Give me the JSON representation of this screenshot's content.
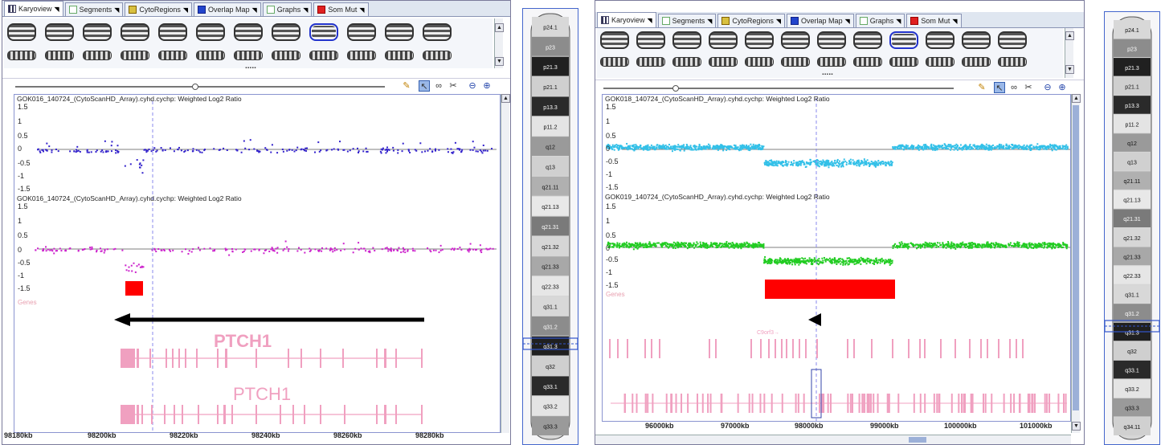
{
  "colors": {
    "probes_016": "#3322cc",
    "probes_017": "#cc22cc",
    "probes_018": "#33c0e8",
    "probes_019": "#22cc22",
    "cnv": "#ff0000",
    "gene": "#f0a0c0",
    "arrow": "#000000"
  },
  "left": {
    "tabs": [
      {
        "label": "Karyoview",
        "icon": "karyoview-icon"
      },
      {
        "label": "Segments",
        "icon": "segments-icon"
      },
      {
        "label": "CytoRegions",
        "icon": "cytoregions-icon"
      },
      {
        "label": "Overlap Map",
        "icon": "overlap-map-icon"
      },
      {
        "label": "Graphs",
        "icon": "graphs-icon"
      },
      {
        "label": "Som Mut",
        "icon": "som-mut-icon"
      }
    ],
    "track1_title": "GOK016_140724_(CytoScanHD_Array).cyhd.cychp: Weighted Log2 Ratio",
    "track2_title": "GOK016_140724_(CytoScanHD_Array).cyhd.cychp: Weighted Log2 Ratio",
    "yticks": [
      "1.5",
      "1",
      "0.5",
      "0",
      "-0.5",
      "-1",
      "-1.5"
    ],
    "genes_label": "Genes",
    "gene_name_upper": "PTCH1",
    "gene_name_lower": "PTCH1",
    "x_ticks": [
      "98180kb",
      "98200kb",
      "98220kb",
      "98240kb",
      "98260kb",
      "98280kb"
    ],
    "dots": "....."
  },
  "right": {
    "tabs": [
      {
        "label": "Karyoview",
        "icon": "karyoview-icon"
      },
      {
        "label": "Segments",
        "icon": "segments-icon"
      },
      {
        "label": "CytoRegions",
        "icon": "cytoregions-icon"
      },
      {
        "label": "Overlap Map",
        "icon": "overlap-map-icon"
      },
      {
        "label": "Graphs",
        "icon": "graphs-icon"
      },
      {
        "label": "Som Mut",
        "icon": "som-mut-icon"
      }
    ],
    "track1_title": "GOK018_140724_(CytoScanHD_Array).cyhd.cychp: Weighted Log2 Ratio",
    "track2_title": "GOK019_140724_(CytoScanHD_Array).cyhd.cychp: Weighted Log2 Ratio",
    "yticks": [
      "1.5",
      "1",
      "0.5",
      "0",
      "-0.5",
      "-1",
      "-1.5"
    ],
    "genes_label": "Genes",
    "gene_small_label": "C9orf3→",
    "x_ticks": [
      "96000kb",
      "97000kb",
      "98000kb",
      "99000kb",
      "100000kb",
      "101000kb"
    ],
    "dots": "....."
  },
  "ideogram_left": {
    "bands": [
      "p24.1",
      "p23",
      "p21.3",
      "p21.1",
      "p13.3",
      "p11.2",
      "q12",
      "q13",
      "q21.11",
      "q21.13",
      "q21.31",
      "q21.32",
      "q21.33",
      "q22.33",
      "q31.1",
      "q31.2",
      "q31.3",
      "q32",
      "q33.1",
      "q33.2",
      "q33.3"
    ]
  },
  "ideogram_right": {
    "bands": [
      "p24.1",
      "p23",
      "p21.3",
      "p21.1",
      "p13.3",
      "p11.2",
      "q12",
      "q13",
      "q21.11",
      "q21.13",
      "q21.31",
      "q21.32",
      "q21.33",
      "q22.33",
      "q31.1",
      "q31.2",
      "q31.3",
      "q32",
      "q33.1",
      "q33.2",
      "q33.3",
      "q34.11"
    ]
  }
}
